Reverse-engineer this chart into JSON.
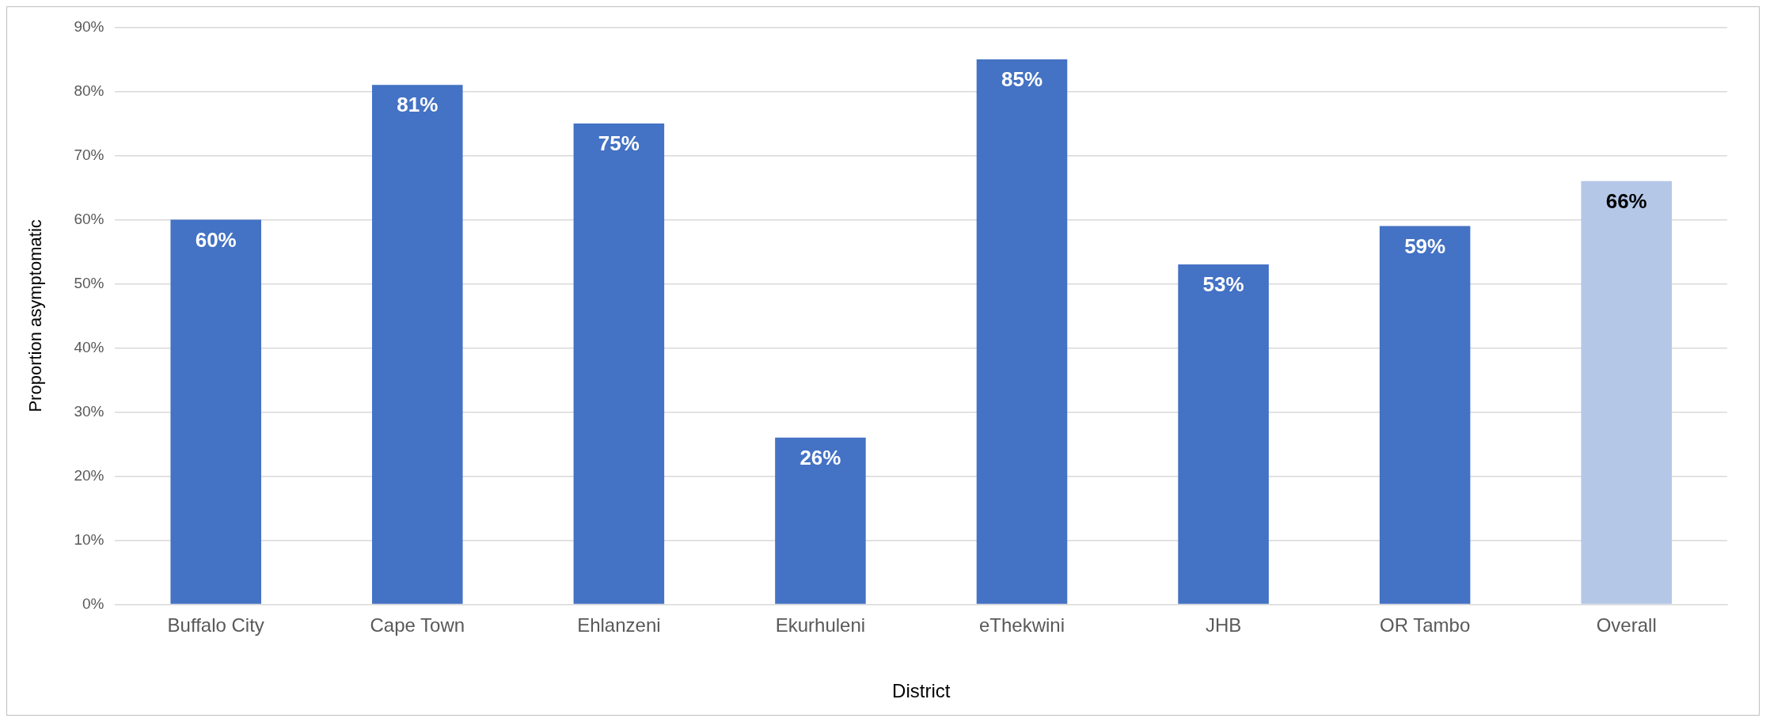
{
  "chart_data": {
    "type": "bar",
    "xlabel": "District",
    "ylabel": "Proportion asymptomatic",
    "categories": [
      "Buffalo City",
      "Cape Town",
      "Ehlanzeni",
      "Ekurhuleni",
      "eThekwini",
      "JHB",
      "OR Tambo",
      "Overall"
    ],
    "values": [
      60,
      81,
      75,
      26,
      85,
      53,
      59,
      66
    ],
    "colors": [
      "#4472c4",
      "#4472c4",
      "#4472c4",
      "#4472c4",
      "#4472c4",
      "#4472c4",
      "#4472c4",
      "#b4c7e7"
    ],
    "value_labels": [
      "60%",
      "81%",
      "75%",
      "26%",
      "85%",
      "53%",
      "59%",
      "66%"
    ],
    "ylim": [
      0,
      90
    ],
    "yticks": [
      {
        "value": 0,
        "label": "0%"
      },
      {
        "value": 10,
        "label": "10%"
      },
      {
        "value": 20,
        "label": "20%"
      },
      {
        "value": 30,
        "label": "30%"
      },
      {
        "value": 40,
        "label": "40%"
      },
      {
        "value": 50,
        "label": "50%"
      },
      {
        "value": 60,
        "label": "60%"
      },
      {
        "value": 70,
        "label": "70%"
      },
      {
        "value": 80,
        "label": "80%"
      },
      {
        "value": 90,
        "label": "90%"
      }
    ],
    "grid": "y",
    "legend": false
  }
}
